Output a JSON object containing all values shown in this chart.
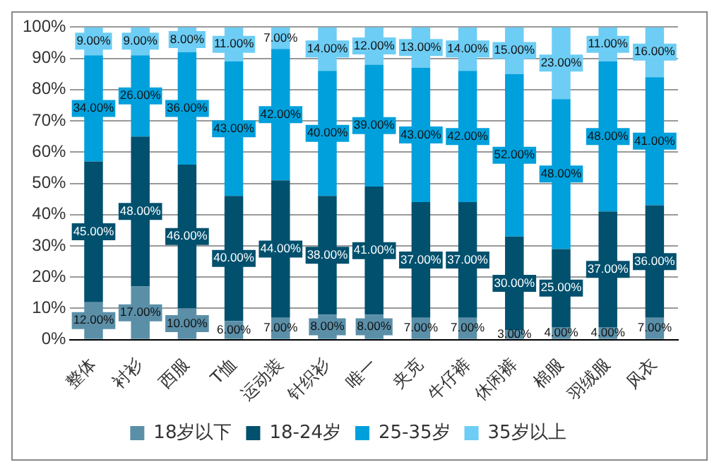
{
  "chart_data": {
    "type": "bar",
    "stacked": true,
    "categories": [
      "整体",
      "衬衫",
      "西服",
      "T恤",
      "运动装",
      "针织衫",
      "唯一",
      "夹克",
      "牛仔裤",
      "休闲裤",
      "棉服",
      "羽绒服",
      "风衣"
    ],
    "series": [
      {
        "name": "18岁以下",
        "color": "#5b8fa8",
        "values": [
          12,
          17,
          10,
          6,
          7,
          8,
          8,
          7,
          7,
          3,
          4,
          4,
          7
        ],
        "value_labels": [
          "12.00%",
          "17.00%",
          "10.00%",
          "6.00%",
          "7.00%",
          "8.00%",
          "8.00%",
          "7.00%",
          "7.00%",
          "3.00%",
          "4.00%",
          "4.00%",
          "7.00%"
        ]
      },
      {
        "name": "18-24岁",
        "color": "#00506e",
        "values": [
          45,
          48,
          46,
          40,
          44,
          38,
          41,
          37,
          37,
          30,
          25,
          37,
          36
        ],
        "value_labels": [
          "45.00%",
          "48.00%",
          "46.00%",
          "40.00%",
          "44.00%",
          "38.00%",
          "41.00%",
          "37.00%",
          "37.00%",
          "30.00%",
          "25.00%",
          "37.00%",
          "36.00%"
        ]
      },
      {
        "name": "25-35岁",
        "color": "#00a0dc",
        "values": [
          34,
          26,
          36,
          43,
          42,
          40,
          39,
          43,
          42,
          52,
          48,
          48,
          41
        ],
        "value_labels": [
          "34.00%",
          "26.00%",
          "36.00%",
          "43.00%",
          "42.00%",
          "40.00%",
          "39.00%",
          "43.00%",
          "42.00%",
          "52.00%",
          "48.00%",
          "48.00%",
          "41.00%"
        ]
      },
      {
        "name": "35岁以上",
        "color": "#6dcdf4",
        "values": [
          9,
          9,
          8,
          11,
          7,
          14,
          12,
          13,
          14,
          15,
          23,
          11,
          16
        ],
        "value_labels": [
          "9.00%",
          "9.00%",
          "8.00%",
          "11.00%",
          "7.00%",
          "14.00%",
          "12.00%",
          "13.00%",
          "14.00%",
          "15.00%",
          "23.00%",
          "11.00%",
          "16.00%"
        ]
      }
    ],
    "ylim": [
      0,
      100
    ],
    "yticks": [
      {
        "value": 0,
        "label": "0%"
      },
      {
        "value": 10,
        "label": "10%"
      },
      {
        "value": 20,
        "label": "20%"
      },
      {
        "value": 30,
        "label": "30%"
      },
      {
        "value": 40,
        "label": "40%"
      },
      {
        "value": 50,
        "label": "50%"
      },
      {
        "value": 60,
        "label": "60%"
      },
      {
        "value": 70,
        "label": "70%"
      },
      {
        "value": 80,
        "label": "80%"
      },
      {
        "value": 90,
        "label": "90%"
      },
      {
        "value": 100,
        "label": "100%"
      }
    ],
    "grid": "y",
    "legend": "bottom"
  }
}
